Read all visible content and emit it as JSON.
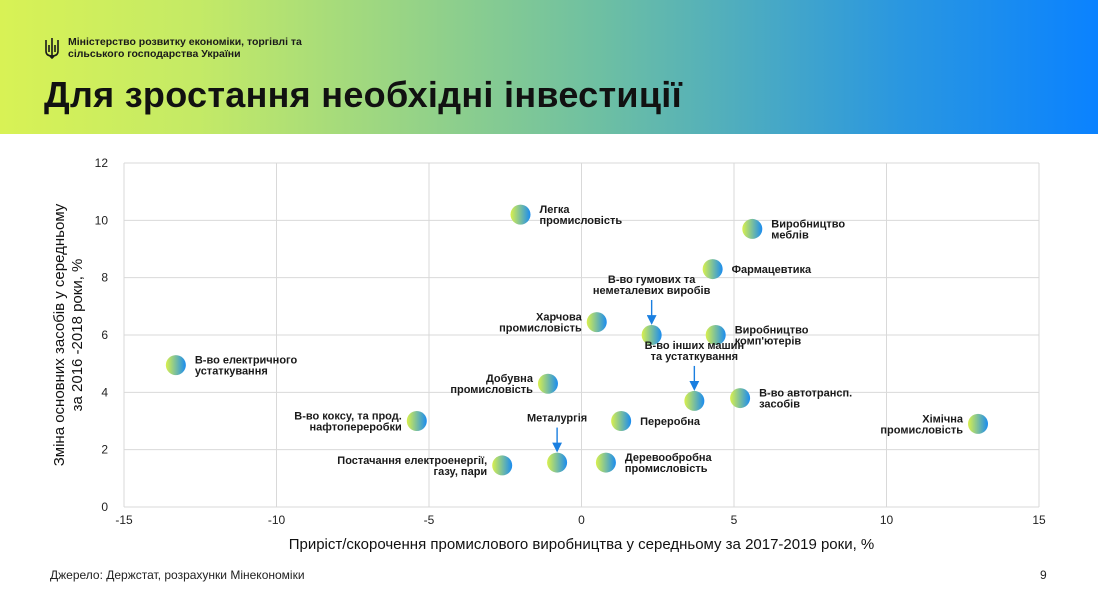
{
  "header": {
    "ministry": "Міністерство розвитку економіки, торгівлі та сільського господарства України",
    "title": "Для зростання необхідні інвестиції"
  },
  "footer": {
    "source": "Джерело: Держстат, розрахунки Мінекономіки",
    "page_number": "9"
  },
  "colors": {
    "point_gradient_start": "#d9f04c",
    "point_gradient_end": "#1a8cf0",
    "arrow": "#1a7fe0",
    "grid": "#d9d9d9"
  },
  "chart_data": {
    "type": "scatter",
    "title": "",
    "xlabel": "Приріст/скорочення промислового виробництва у середньому за 2017-2019 роки, %",
    "ylabel": [
      "Зміна основних засобів  у середньому",
      "за 2016 -2018 роки, %"
    ],
    "xlim": [
      -15,
      15
    ],
    "ylim": [
      0,
      12
    ],
    "xticks": [
      -15,
      -10,
      -5,
      0,
      5,
      10,
      15
    ],
    "yticks": [
      0,
      2,
      4,
      6,
      8,
      10,
      12
    ],
    "grid": true,
    "points": [
      {
        "label": [
          "Легка",
          "промисловість"
        ],
        "x": -2.0,
        "y": 10.2,
        "anchor": "start",
        "arrow": false
      },
      {
        "label": [
          "Виробництво",
          "меблів"
        ],
        "x": 5.6,
        "y": 9.7,
        "anchor": "start",
        "arrow": false
      },
      {
        "label": [
          "Фармацевтика"
        ],
        "x": 4.3,
        "y": 8.3,
        "anchor": "start",
        "arrow": false
      },
      {
        "label": [
          "В-во гумових та",
          "неметалевих виробів"
        ],
        "x": 2.3,
        "y": 6.0,
        "anchor": "above",
        "arrow": true
      },
      {
        "label": [
          "Харчова",
          "промисловість"
        ],
        "x": 0.5,
        "y": 6.45,
        "anchor": "end",
        "arrow": false
      },
      {
        "label": [
          "Виробництво",
          "комп'ютерів"
        ],
        "x": 4.4,
        "y": 6.0,
        "anchor": "start",
        "arrow": false
      },
      {
        "label": [
          "В-во електричного",
          "устаткування"
        ],
        "x": -13.3,
        "y": 4.95,
        "anchor": "start",
        "arrow": false
      },
      {
        "label": [
          "В-во інших машин",
          "та устаткування"
        ],
        "x": 3.7,
        "y": 3.7,
        "anchor": "above",
        "arrow": true
      },
      {
        "label": [
          "Добувна",
          "промисловість"
        ],
        "x": -1.1,
        "y": 4.3,
        "anchor": "end",
        "arrow": false
      },
      {
        "label": [
          "В-во автотрансп.",
          "засобів"
        ],
        "x": 5.2,
        "y": 3.8,
        "anchor": "start",
        "arrow": false
      },
      {
        "label": [
          "В-во коксу, та прод.",
          "нафтопереробки"
        ],
        "x": -5.4,
        "y": 3.0,
        "anchor": "end",
        "arrow": false
      },
      {
        "label": [
          "Переробна"
        ],
        "x": 1.3,
        "y": 3.0,
        "anchor": "start",
        "arrow": false
      },
      {
        "label": [
          "Хімічна",
          "промисловість"
        ],
        "x": 13.0,
        "y": 2.9,
        "anchor": "end",
        "arrow": false
      },
      {
        "label": [
          "Металургія"
        ],
        "x": -0.8,
        "y": 1.55,
        "anchor": "above",
        "arrow": true
      },
      {
        "label": [
          "Постачання електроенергії,",
          "газу, пари"
        ],
        "x": -2.6,
        "y": 1.45,
        "anchor": "end",
        "arrow": false
      },
      {
        "label": [
          "Деревообробна",
          "промисловість"
        ],
        "x": 0.8,
        "y": 1.55,
        "anchor": "start",
        "arrow": false
      }
    ]
  }
}
